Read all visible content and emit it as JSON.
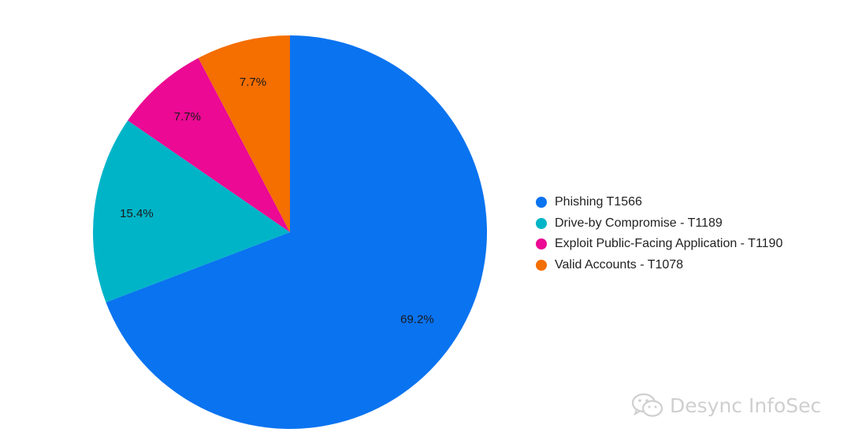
{
  "chart_data": {
    "type": "pie",
    "start_angle_deg": 0,
    "direction": "clockwise",
    "slices": [
      {
        "label": "Phishing T1566",
        "value": 69.2,
        "display": "69.2%",
        "color": "#0a73f0"
      },
      {
        "label": "Drive-by Compromise - T1189",
        "value": 15.4,
        "display": "15.4%",
        "color": "#00b4c8"
      },
      {
        "label": "Exploit Public-Facing Application - T1190",
        "value": 7.7,
        "display": "7.7%",
        "color": "#ec0993"
      },
      {
        "label": "Valid Accounts - T1078",
        "value": 7.7,
        "display": "7.7%",
        "color": "#f46e00"
      }
    ],
    "legend_position": "right",
    "title": ""
  },
  "watermark": {
    "text": "Desync InfoSec",
    "icon": "wechat-icon"
  }
}
